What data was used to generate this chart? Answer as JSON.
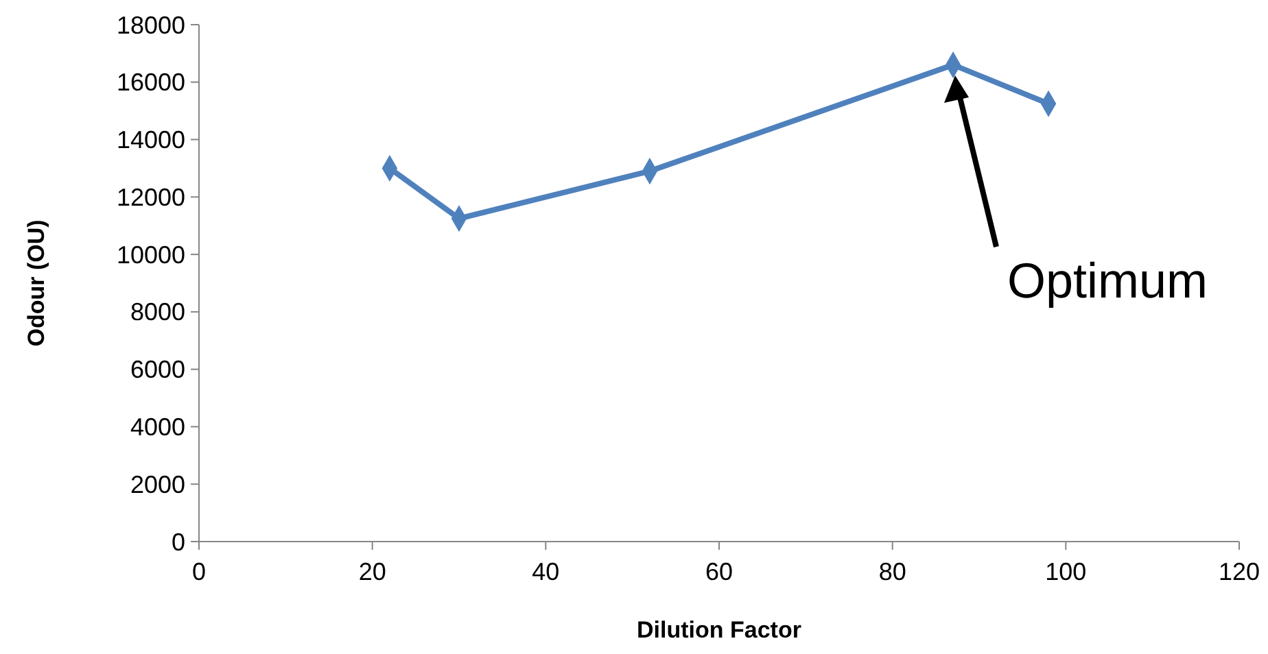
{
  "chart_data": {
    "type": "line",
    "xlabel": "Dilution Factor",
    "ylabel": "Odour (OU)",
    "x": [
      22,
      30,
      52,
      87,
      98
    ],
    "series": [
      {
        "color": "#4f81bd",
        "values": [
          13000,
          11250,
          12900,
          16600,
          15250
        ]
      }
    ],
    "xlim": [
      0,
      120
    ],
    "xticks": [
      0,
      20,
      40,
      60,
      80,
      100,
      120
    ],
    "ylim": [
      0,
      18000
    ],
    "yticks": [
      0,
      2000,
      4000,
      6000,
      8000,
      10000,
      12000,
      14000,
      16000,
      18000
    ],
    "marker": "diamond",
    "grid": false,
    "annotations": [
      "Optimum"
    ]
  }
}
